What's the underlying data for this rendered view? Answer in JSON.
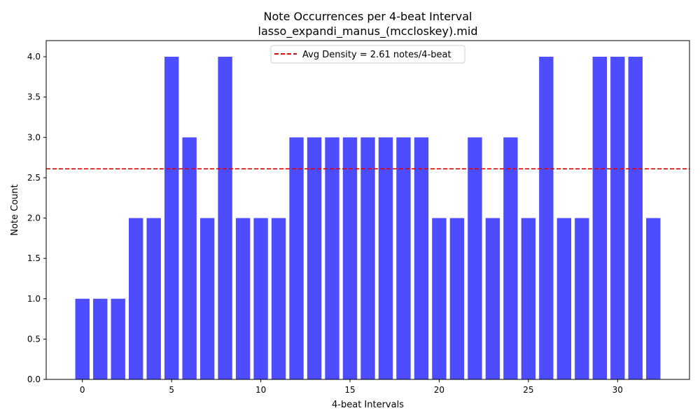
{
  "chart_data": {
    "type": "bar",
    "title": "Note Occurrences per 4-beat Interval",
    "subtitle": "lasso_expandi_manus_(mccloskey).mid",
    "xlabel": "4-beat Intervals",
    "ylabel": "Note Count",
    "x": [
      0,
      1,
      2,
      3,
      4,
      5,
      6,
      7,
      8,
      9,
      10,
      11,
      12,
      13,
      14,
      15,
      16,
      17,
      18,
      19,
      20,
      21,
      22,
      23,
      24,
      25,
      26,
      27,
      28,
      29,
      30,
      31,
      32
    ],
    "values": [
      1,
      1,
      1,
      2,
      2,
      4,
      3,
      2,
      4,
      2,
      2,
      2,
      3,
      3,
      3,
      3,
      3,
      3,
      3,
      3,
      2,
      2,
      3,
      2,
      3,
      2,
      4,
      2,
      2,
      4,
      4,
      4,
      2
    ],
    "xlim": [
      -2.03,
      34.03
    ],
    "ylim": [
      0,
      4.2
    ],
    "xticks": [
      0,
      5,
      10,
      15,
      20,
      25,
      30
    ],
    "yticks": [
      "0.0",
      "0.5",
      "1.0",
      "1.5",
      "2.0",
      "2.5",
      "3.0",
      "3.5",
      "4.0"
    ],
    "bar_color": "#4d4dff",
    "average_line": {
      "value": 2.61,
      "color": "#e60000",
      "style": "dashed",
      "label": "Avg Density = 2.61 notes/4-beat"
    },
    "legend": {
      "position": "top-center"
    },
    "grid": false
  }
}
